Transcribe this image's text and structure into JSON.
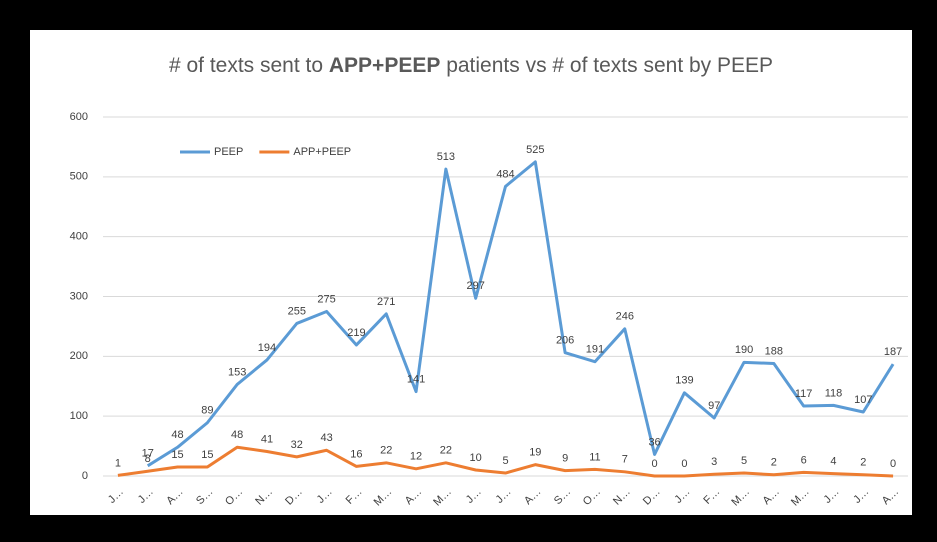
{
  "chart_data": {
    "type": "line",
    "title": [
      "# of texts sent to ",
      "APP+PEEP",
      " patients vs # of texts sent by PEEP"
    ],
    "categories": [
      "J…",
      "J…",
      "A…",
      "S…",
      "O…",
      "N…",
      "D…",
      "J…",
      "F…",
      "M…",
      "A…",
      "M…",
      "J…",
      "J…",
      "A…",
      "S…",
      "O…",
      "N…",
      "D…",
      "J…",
      "F…",
      "M…",
      "A…",
      "M…",
      "J…",
      "J…",
      "A…"
    ],
    "series": [
      {
        "name": "PEEP",
        "color": "#5b9bd5",
        "values": [
          null,
          17,
          48,
          89,
          153,
          194,
          255,
          275,
          219,
          271,
          141,
          513,
          297,
          484,
          525,
          206,
          191,
          246,
          36,
          139,
          97,
          190,
          188,
          117,
          118,
          107,
          187
        ]
      },
      {
        "name": "APP+PEEP",
        "color": "#ed7d31",
        "values": [
          1,
          8,
          15,
          15,
          48,
          41,
          32,
          43,
          16,
          22,
          12,
          22,
          10,
          5,
          19,
          9,
          11,
          7,
          0,
          0,
          3,
          5,
          2,
          6,
          4,
          2,
          0
        ]
      }
    ],
    "ylim": [
      0,
      600
    ],
    "yticks": [
      0,
      100,
      200,
      300,
      400,
      500,
      600
    ],
    "grid": true,
    "legend": "top-left"
  }
}
